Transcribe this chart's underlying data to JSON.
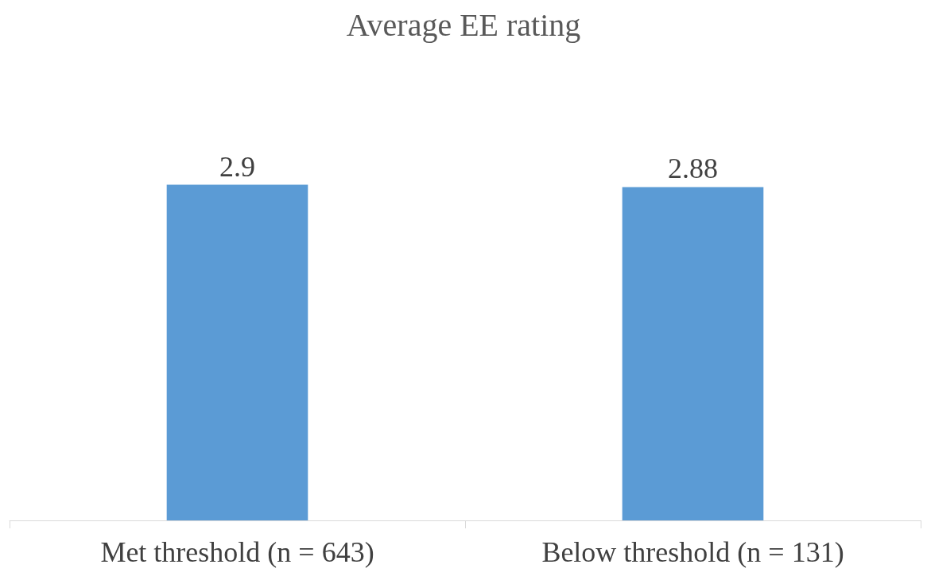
{
  "chart_data": {
    "type": "bar",
    "title": "Average EE rating",
    "categories": [
      "Met threshold (n = 643)",
      "Below threshold (n = 131)"
    ],
    "values": [
      2.9,
      2.88
    ],
    "color": "#5b9bd5",
    "data_labels": true
  }
}
